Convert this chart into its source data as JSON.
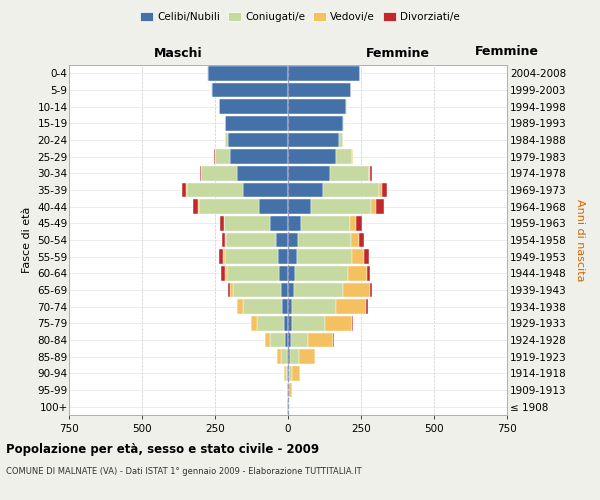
{
  "age_groups": [
    "100+",
    "95-99",
    "90-94",
    "85-89",
    "80-84",
    "75-79",
    "70-74",
    "65-69",
    "60-64",
    "55-59",
    "50-54",
    "45-49",
    "40-44",
    "35-39",
    "30-34",
    "25-29",
    "20-24",
    "15-19",
    "10-14",
    "5-9",
    "0-4"
  ],
  "birth_years": [
    "≤ 1908",
    "1909-1913",
    "1914-1918",
    "1919-1923",
    "1924-1928",
    "1929-1933",
    "1934-1938",
    "1939-1943",
    "1944-1948",
    "1949-1953",
    "1954-1958",
    "1959-1963",
    "1964-1968",
    "1969-1973",
    "1974-1978",
    "1979-1983",
    "1984-1988",
    "1989-1993",
    "1994-1998",
    "1999-2003",
    "2004-2008"
  ],
  "maschi": {
    "celibi": [
      2,
      2,
      3,
      5,
      10,
      15,
      20,
      25,
      30,
      35,
      40,
      60,
      100,
      155,
      175,
      200,
      205,
      215,
      235,
      260,
      275
    ],
    "coniugati": [
      0,
      2,
      5,
      20,
      50,
      90,
      135,
      162,
      178,
      182,
      172,
      158,
      205,
      192,
      122,
      50,
      10,
      2,
      2,
      2,
      2
    ],
    "vedovi": [
      0,
      0,
      5,
      12,
      18,
      22,
      18,
      12,
      8,
      5,
      3,
      2,
      2,
      2,
      0,
      0,
      0,
      0,
      0,
      0,
      0
    ],
    "divorziati": [
      0,
      0,
      0,
      0,
      0,
      0,
      2,
      8,
      12,
      14,
      12,
      14,
      18,
      14,
      5,
      2,
      2,
      0,
      0,
      0,
      0
    ]
  },
  "femmine": {
    "nubili": [
      2,
      2,
      5,
      8,
      10,
      15,
      15,
      20,
      25,
      30,
      35,
      45,
      80,
      120,
      145,
      165,
      175,
      190,
      200,
      215,
      245
    ],
    "coniugate": [
      0,
      2,
      8,
      30,
      60,
      110,
      148,
      168,
      182,
      188,
      182,
      168,
      205,
      192,
      132,
      55,
      15,
      3,
      3,
      2,
      2
    ],
    "vedove": [
      2,
      8,
      28,
      55,
      85,
      95,
      105,
      92,
      62,
      42,
      26,
      20,
      15,
      10,
      5,
      2,
      0,
      0,
      0,
      0,
      0
    ],
    "divorziate": [
      0,
      0,
      0,
      0,
      2,
      2,
      5,
      8,
      12,
      16,
      16,
      20,
      28,
      16,
      5,
      2,
      0,
      0,
      0,
      0,
      0
    ]
  },
  "colors": {
    "celibi": "#4472a8",
    "coniugati": "#c5d9a0",
    "vedovi": "#f5c060",
    "divorziati": "#c0282c"
  },
  "title": "Popolazione per età, sesso e stato civile - 2009",
  "subtitle": "COMUNE DI MALNATE (VA) - Dati ISTAT 1° gennaio 2009 - Elaborazione TUTTITALIA.IT",
  "xlabel_left": "Maschi",
  "xlabel_right": "Femmine",
  "ylabel_left": "Fasce di età",
  "ylabel_right": "Anni di nascita",
  "xlim": 750,
  "bg_color": "#f0f0eb",
  "plot_bg_color": "#ffffff"
}
